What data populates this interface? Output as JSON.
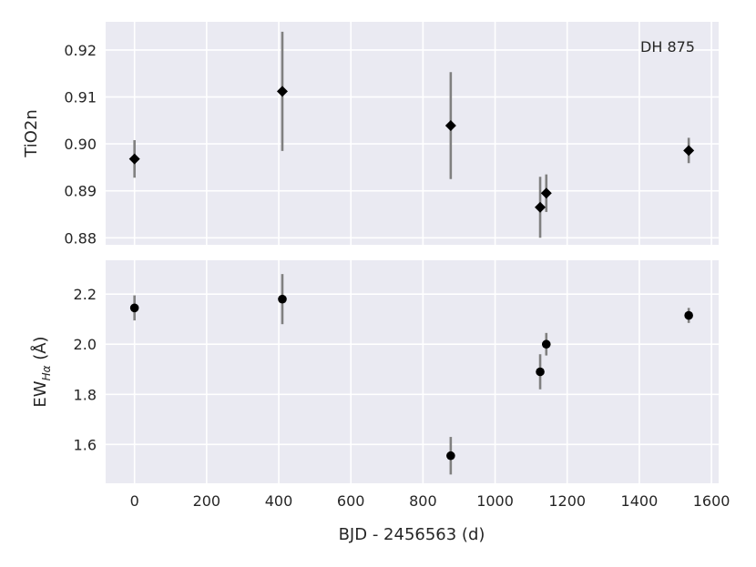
{
  "chart_data": [
    {
      "type": "scatter",
      "panel": "top",
      "ylabel": "TiO2n",
      "xlabel": "",
      "annotation": "DH 875",
      "xlim": [
        -80,
        1620
      ],
      "ylim": [
        0.8785,
        0.926
      ],
      "xticks": [
        0,
        200,
        400,
        600,
        800,
        1000,
        1200,
        1400,
        1600
      ],
      "yticks": [
        0.88,
        0.89,
        0.9,
        0.91,
        0.92
      ],
      "ytick_labels": [
        "0.88",
        "0.89",
        "0.90",
        "0.91",
        "0.92"
      ],
      "grid": true,
      "marker": "diamond",
      "marker_color": "#000000",
      "errorbar_color": "#808080",
      "points": [
        {
          "x": 0,
          "y": 0.8968,
          "err": 0.004
        },
        {
          "x": 410,
          "y": 0.9112,
          "err": 0.0127
        },
        {
          "x": 877,
          "y": 0.9039,
          "err": 0.0114
        },
        {
          "x": 1125,
          "y": 0.8865,
          "err": 0.0065
        },
        {
          "x": 1142,
          "y": 0.8895,
          "err": 0.004
        },
        {
          "x": 1537,
          "y": 0.8986,
          "err": 0.0027
        }
      ]
    },
    {
      "type": "scatter",
      "panel": "bottom",
      "ylabel": "EW",
      "ylabel_sub": "Hα",
      "ylabel_unit": " (Å)",
      "xlabel": "BJD - 2456563 (d)",
      "xlim": [
        -80,
        1620
      ],
      "ylim": [
        1.445,
        2.335
      ],
      "xticks": [
        0,
        200,
        400,
        600,
        800,
        1000,
        1200,
        1400,
        1600
      ],
      "xtick_labels": [
        "0",
        "200",
        "400",
        "600",
        "800",
        "1000",
        "1200",
        "1400",
        "1600"
      ],
      "yticks": [
        1.6,
        1.8,
        2.0,
        2.2
      ],
      "ytick_labels": [
        "1.6",
        "1.8",
        "2.0",
        "2.2"
      ],
      "grid": true,
      "marker": "circle",
      "marker_color": "#000000",
      "errorbar_color": "#808080",
      "points": [
        {
          "x": 0,
          "y": 2.145,
          "err": 0.05
        },
        {
          "x": 410,
          "y": 2.18,
          "err": 0.1
        },
        {
          "x": 877,
          "y": 1.555,
          "err": 0.075
        },
        {
          "x": 1125,
          "y": 1.89,
          "err": 0.07
        },
        {
          "x": 1142,
          "y": 2.0,
          "err": 0.045
        },
        {
          "x": 1537,
          "y": 2.115,
          "err": 0.03
        }
      ]
    }
  ],
  "colors": {
    "panel_background": "#eaeaf2",
    "grid": "#ffffff",
    "text": "#262626"
  }
}
